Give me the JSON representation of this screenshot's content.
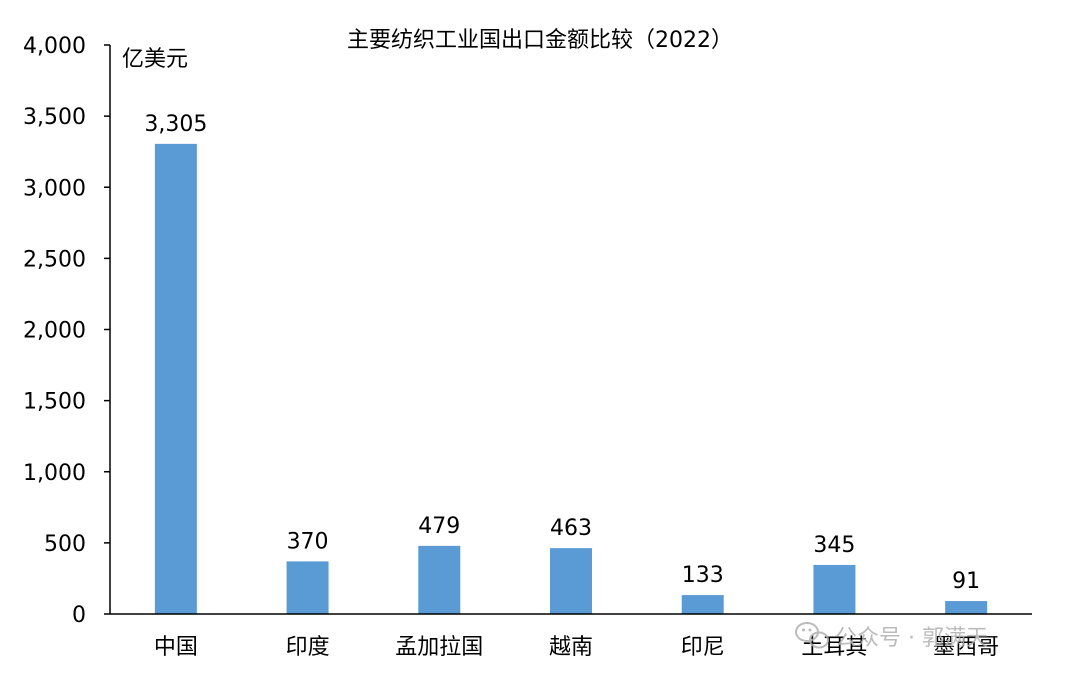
{
  "chart_data": {
    "type": "bar",
    "title": "主要纺织工业国出口金额比较（2022）",
    "ylabel": "亿美元",
    "xlabel": "",
    "categories": [
      "中国",
      "印度",
      "孟加拉国",
      "越南",
      "印尼",
      "土耳其",
      "墨西哥"
    ],
    "values": [
      3305,
      370,
      479,
      463,
      133,
      345,
      91
    ],
    "data_labels": [
      "3,305",
      "370",
      "479",
      "463",
      "133",
      "345",
      "91"
    ],
    "ylim": [
      0,
      4000
    ],
    "yticks": [
      0,
      500,
      1000,
      1500,
      2000,
      2500,
      3000,
      3500,
      4000
    ],
    "ytick_labels": [
      "0",
      "500",
      "1,000",
      "1,500",
      "2,000",
      "2,500",
      "3,000",
      "3,500",
      "4,000"
    ],
    "grid": false,
    "legend": "none",
    "bar_color": "#5b9bd5"
  },
  "watermark": {
    "text": "公众号 · 郭满天",
    "icon": "wechat-icon"
  }
}
